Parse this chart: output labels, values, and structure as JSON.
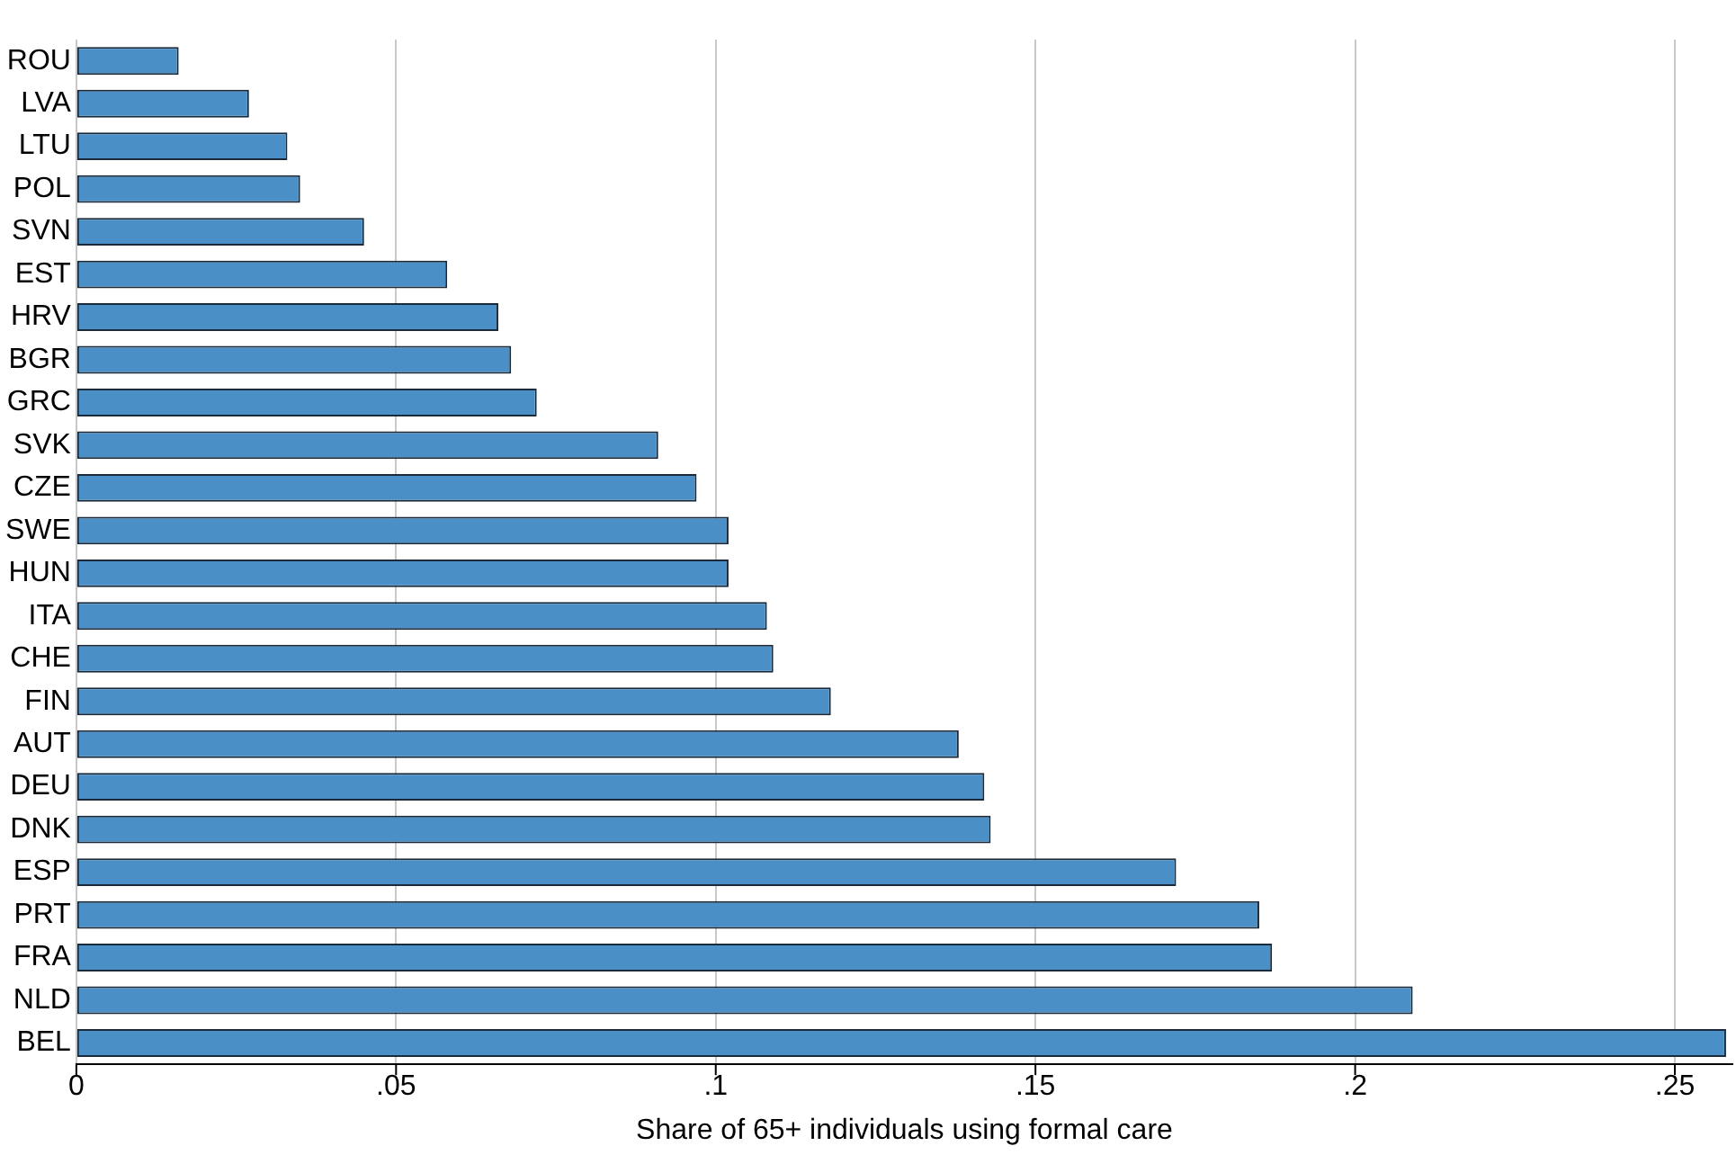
{
  "chart_data": {
    "type": "bar",
    "orientation": "horizontal",
    "xlabel": "Share of 65+ individuals using formal care",
    "categories": [
      "ROU",
      "LVA",
      "LTU",
      "POL",
      "SVN",
      "EST",
      "HRV",
      "BGR",
      "GRC",
      "SVK",
      "CZE",
      "SWE",
      "HUN",
      "ITA",
      "CHE",
      "FIN",
      "AUT",
      "DEU",
      "DNK",
      "ESP",
      "PRT",
      "FRA",
      "NLD",
      "BEL"
    ],
    "values": [
      0.016,
      0.027,
      0.033,
      0.035,
      0.045,
      0.058,
      0.066,
      0.068,
      0.072,
      0.091,
      0.097,
      0.102,
      0.102,
      0.108,
      0.109,
      0.118,
      0.138,
      0.142,
      0.143,
      0.172,
      0.185,
      0.187,
      0.209,
      0.258
    ],
    "color": "#4a90c6",
    "xlim": [
      0,
      0.259
    ],
    "xticks": [
      0,
      {
        "value": 0.05,
        "label": ".05"
      },
      {
        "value": 0.1,
        "label": ".1"
      },
      {
        "value": 0.15,
        "label": ".15"
      },
      {
        "value": 0.2,
        "label": ".2"
      },
      {
        "value": 0.25,
        "label": ".25"
      }
    ],
    "grid": "x",
    "legend": false
  }
}
